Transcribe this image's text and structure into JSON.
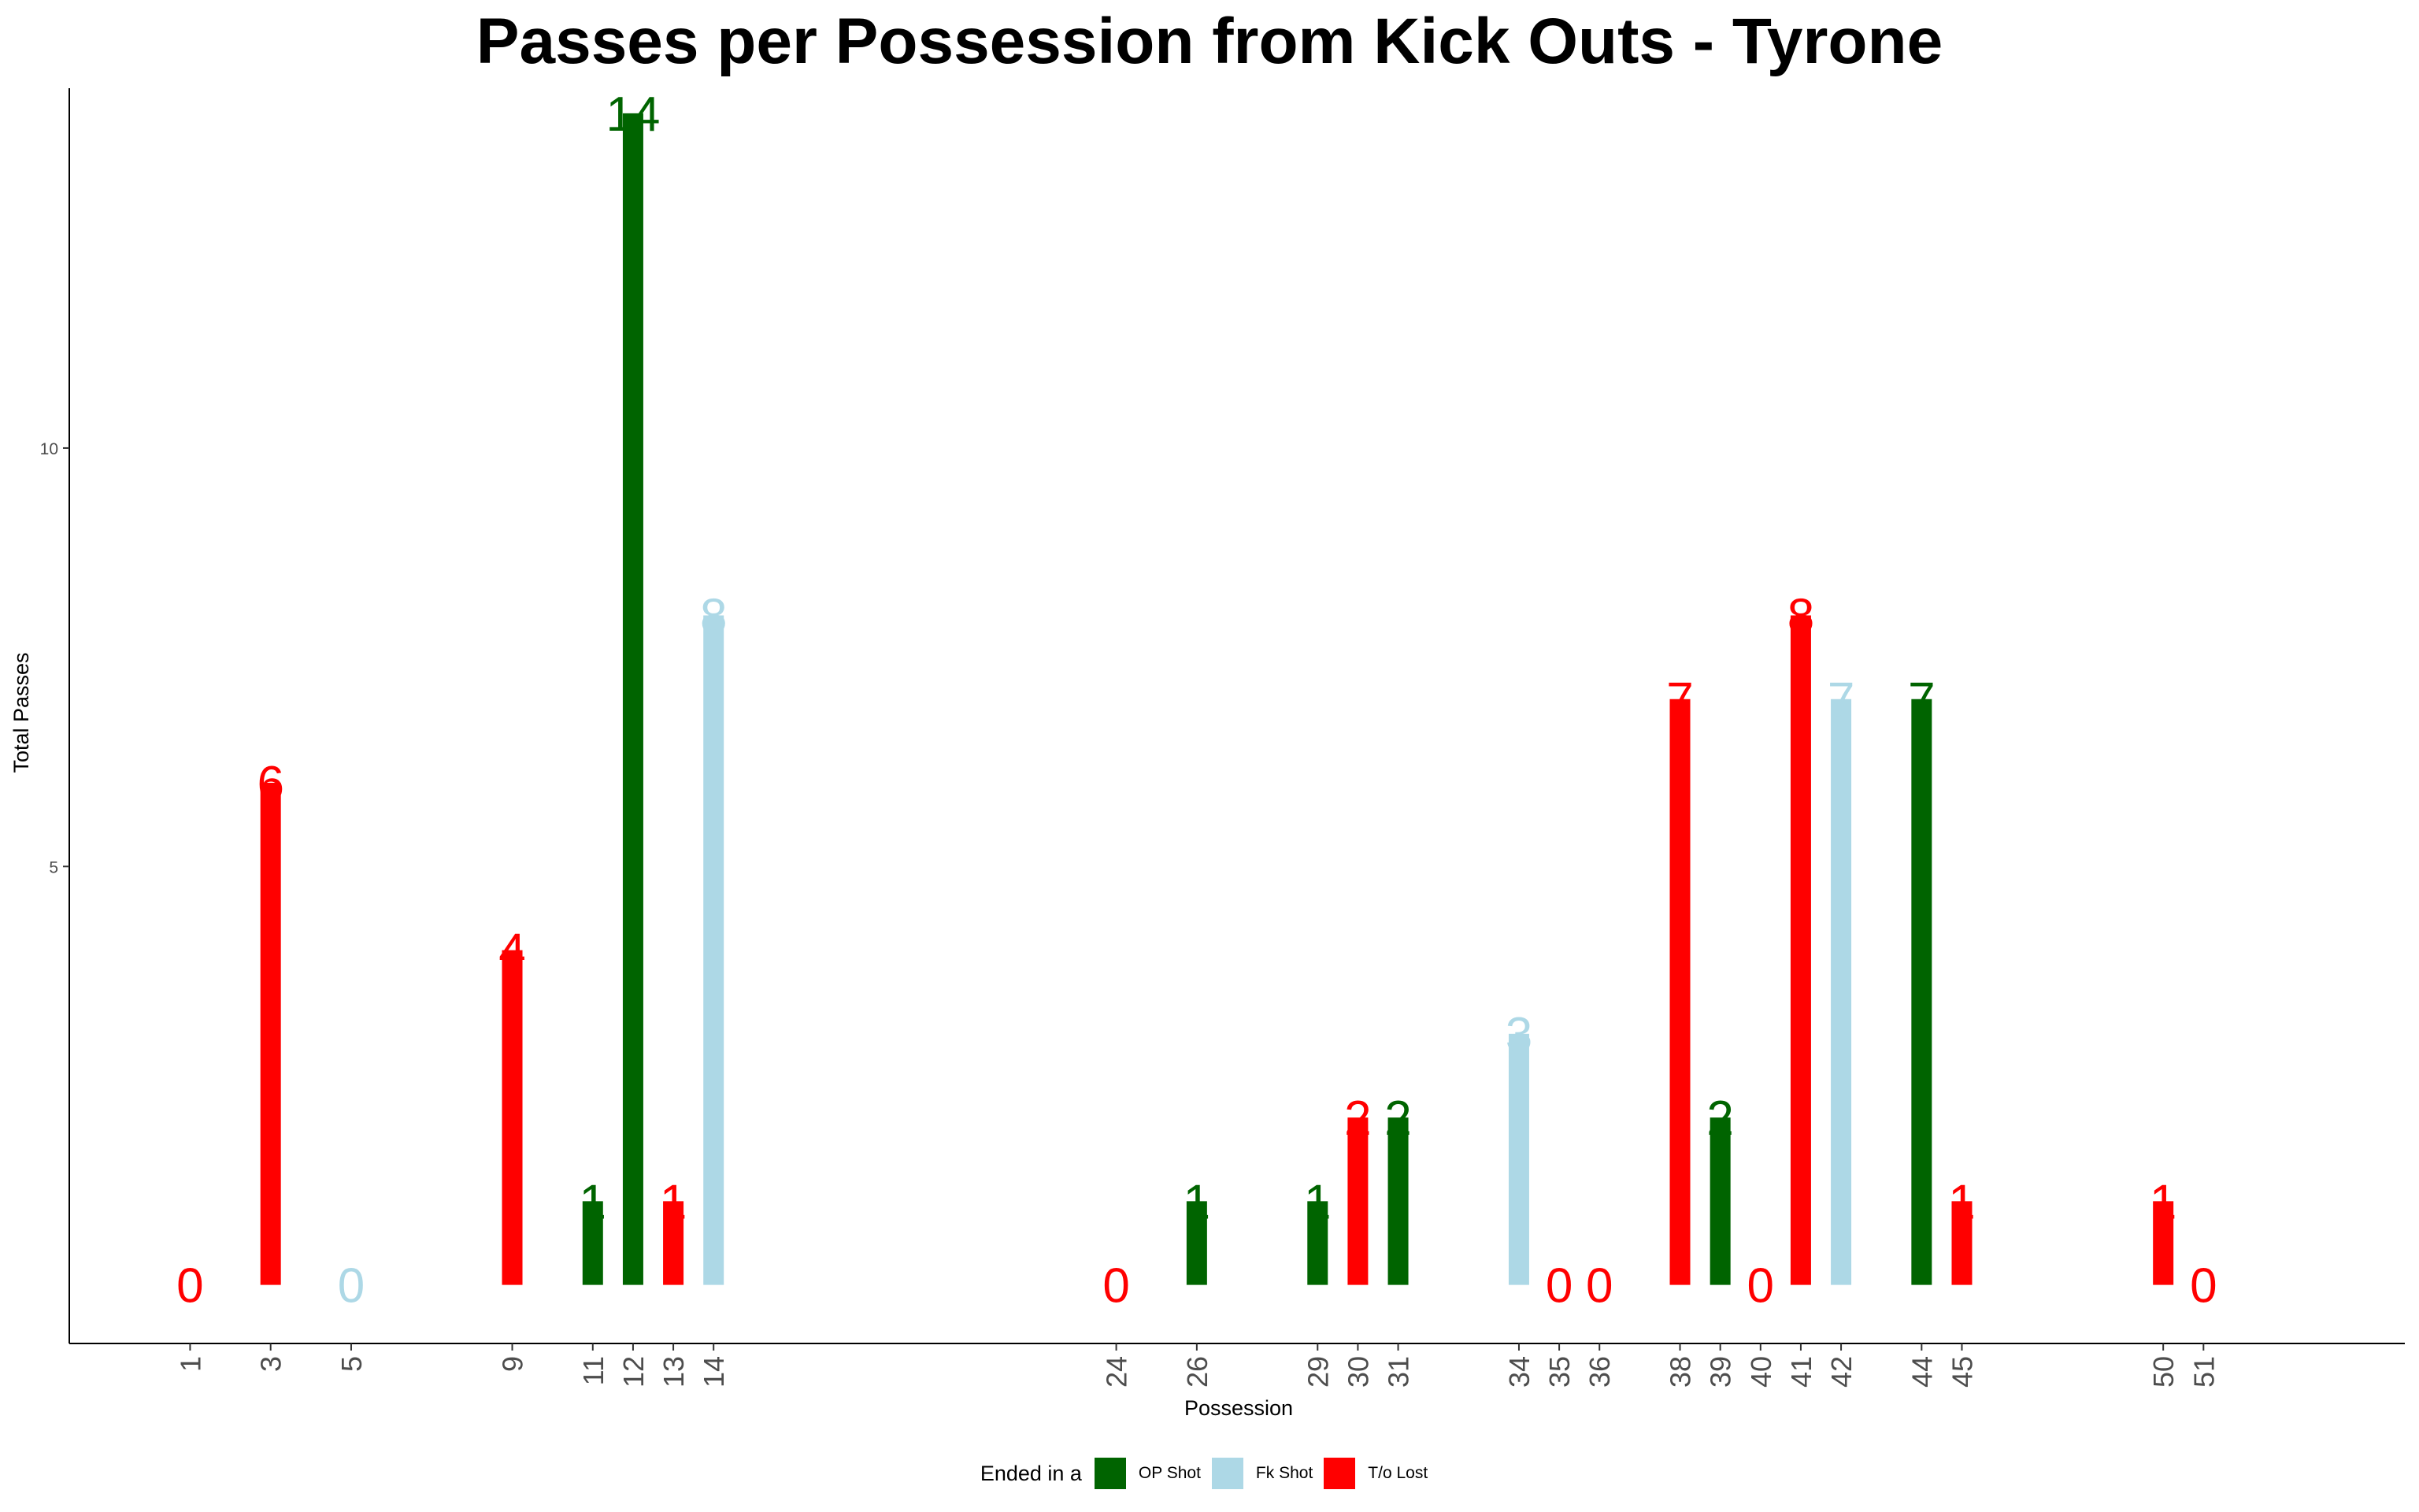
{
  "chart_data": {
    "type": "bar",
    "title": "Passes per Possession from Kick Outs - Tyrone",
    "xlabel": "Possession",
    "ylabel": "Total Passes",
    "x": [
      1,
      3,
      5,
      9,
      11,
      12,
      13,
      14,
      24,
      26,
      29,
      30,
      31,
      34,
      35,
      36,
      38,
      39,
      40,
      41,
      42,
      44,
      45,
      50,
      51
    ],
    "values": [
      0,
      6,
      0,
      4,
      1,
      14,
      1,
      8,
      0,
      1,
      1,
      2,
      2,
      3,
      0,
      0,
      7,
      2,
      0,
      8,
      7,
      7,
      1,
      1,
      0
    ],
    "outcome": [
      "T/o Lost",
      "T/o Lost",
      "Fk Shot",
      "T/o Lost",
      "OP Shot",
      "OP Shot",
      "T/o Lost",
      "Fk Shot",
      "T/o Lost",
      "OP Shot",
      "OP Shot",
      "T/o Lost",
      "OP Shot",
      "Fk Shot",
      "T/o Lost",
      "T/o Lost",
      "T/o Lost",
      "OP Shot",
      "T/o Lost",
      "T/o Lost",
      "Fk Shot",
      "OP Shot",
      "T/o Lost",
      "T/o Lost",
      "T/o Lost"
    ],
    "y_ticks": [
      5,
      10
    ],
    "ylim": [
      -0.7,
      14.3
    ],
    "xlim": [
      -2,
      56
    ],
    "grid": false,
    "legend": {
      "title": "Ended in a",
      "placement": "bottom",
      "entries": [
        {
          "name": "OP Shot",
          "color": "#006400"
        },
        {
          "name": "Fk Shot",
          "color": "#ADD8E6"
        },
        {
          "name": "T/o Lost",
          "color": "#FF0000"
        }
      ]
    }
  }
}
